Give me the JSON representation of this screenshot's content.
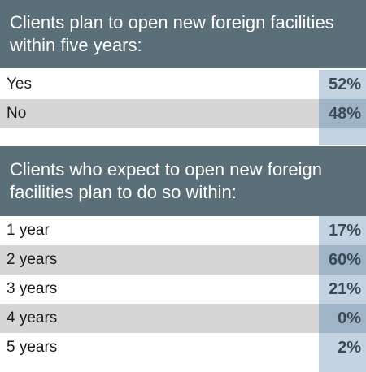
{
  "chart_data": [
    {
      "type": "table",
      "title": "Clients plan to open new foreign facilities within five years:",
      "rows": [
        {
          "label": "Yes",
          "value": "52%"
        },
        {
          "label": "No",
          "value": "48%"
        }
      ]
    },
    {
      "type": "table",
      "title": "Clients who expect to open new foreign facilities plan to do so within:",
      "rows": [
        {
          "label": "1 year",
          "value": "17%"
        },
        {
          "label": "2 years",
          "value": "60%"
        },
        {
          "label": "3 years",
          "value": "21%"
        },
        {
          "label": "4 years",
          "value": "0%"
        },
        {
          "label": "5 years",
          "value": "2%"
        }
      ]
    }
  ],
  "colors": {
    "header_bg": "#5b6f78",
    "row_shaded": "#d6d6d6",
    "value_col": "#c3d3e2",
    "value_col_shaded": "#9fb4c6",
    "value_text": "#3a4a55"
  }
}
